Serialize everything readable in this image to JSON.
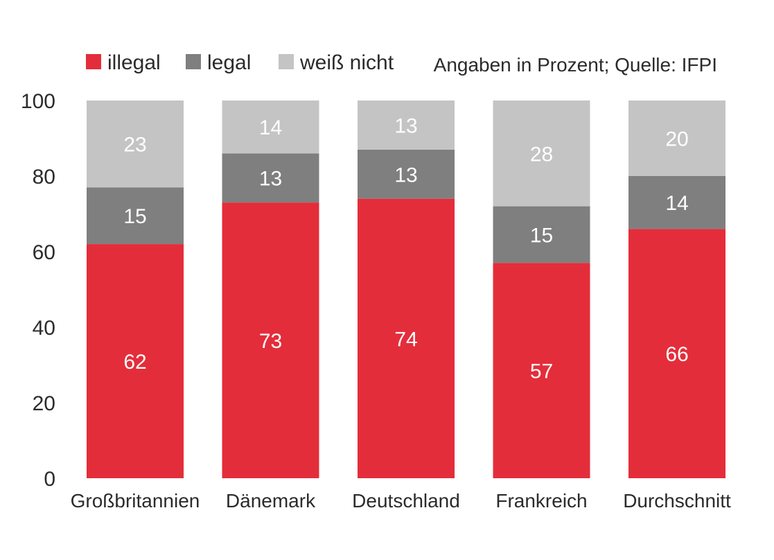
{
  "chart_data": {
    "type": "bar",
    "stacked": true,
    "title": "",
    "xlabel": "",
    "ylabel": "",
    "source_note": "Angaben in Prozent; Quelle: IFPI",
    "categories": [
      "Großbritannien",
      "Dänemark",
      "Deutschland",
      "Frankreich",
      "Durchschnitt"
    ],
    "series": [
      {
        "name": "illegal",
        "color": "#e42d3a",
        "values": [
          62,
          73,
          74,
          57,
          66
        ]
      },
      {
        "name": "legal",
        "color": "#7f7f7f",
        "values": [
          15,
          13,
          13,
          15,
          14
        ]
      },
      {
        "name": "weiß nicht",
        "color": "#c4c4c4",
        "values": [
          23,
          14,
          13,
          28,
          20
        ]
      }
    ],
    "ylim": [
      0,
      100
    ],
    "yticks": [
      0,
      20,
      40,
      60,
      80,
      100
    ],
    "grid": false,
    "legend_position": "top-left"
  }
}
